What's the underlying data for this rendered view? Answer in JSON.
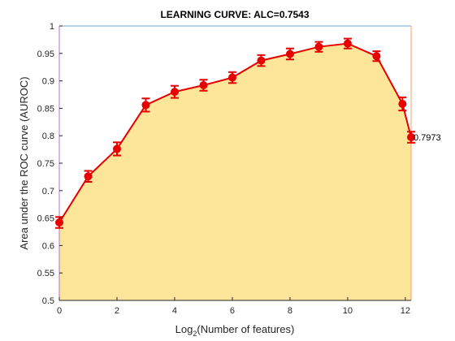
{
  "chart_data": {
    "type": "line",
    "title": "LEARNING CURVE: ALC=0.7543",
    "xlabel_prefix": "Log",
    "xlabel_sub": "2",
    "xlabel_suffix": "(Number of features)",
    "ylabel": "Area under the ROC curve (AUROC)",
    "xlim": [
      0,
      12.2
    ],
    "ylim": [
      0.5,
      1
    ],
    "xticks": [
      "0",
      "2",
      "4",
      "6",
      "8",
      "10",
      "12"
    ],
    "xtick_values": [
      0,
      2,
      4,
      6,
      8,
      10,
      12
    ],
    "yticks": [
      "0.5",
      "0.55",
      "0.6",
      "0.65",
      "0.7",
      "0.75",
      "0.8",
      "0.85",
      "0.9",
      "0.95",
      "1"
    ],
    "ytick_values": [
      0.5,
      0.55,
      0.6,
      0.65,
      0.7,
      0.75,
      0.8,
      0.85,
      0.9,
      0.95,
      1.0
    ],
    "x": [
      0,
      1,
      2,
      3,
      4,
      5,
      6,
      7,
      8,
      9,
      10,
      11,
      11.9,
      12.2
    ],
    "y": [
      0.642,
      0.726,
      0.776,
      0.856,
      0.88,
      0.892,
      0.906,
      0.937,
      0.949,
      0.962,
      0.968,
      0.945,
      0.858,
      0.7973
    ],
    "error": [
      0.01,
      0.01,
      0.012,
      0.012,
      0.011,
      0.01,
      0.01,
      0.01,
      0.01,
      0.009,
      0.009,
      0.009,
      0.012,
      0.01
    ],
    "end_label": "0.7973",
    "colors": {
      "line": "#e60000",
      "marker": "#e60000",
      "fill": "#fde59a",
      "top_axis": "#6baed6",
      "left_axis": "#b370c8",
      "right_axis": "#f0a070",
      "axis": "#262626"
    }
  }
}
